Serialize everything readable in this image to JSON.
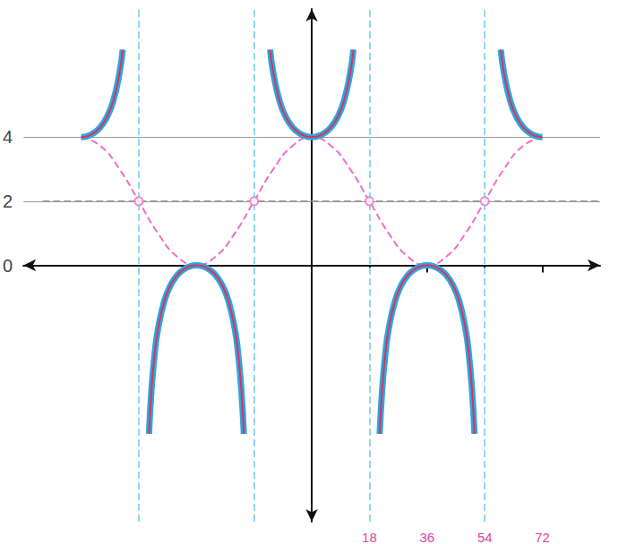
{
  "chart_data": {
    "type": "line",
    "xlim": [
      -90,
      90
    ],
    "ylim": [
      -8,
      8
    ],
    "xticks": [
      18,
      36,
      54,
      72
    ],
    "yticks": [
      0,
      2,
      4
    ],
    "grid": true,
    "series": [
      {
        "type": "line",
        "color": "#29a8e0",
        "line_style": "solid",
        "x": [
          -72,
          -70,
          -68,
          -66,
          -64,
          -62,
          -60,
          -59
        ],
        "values": [
          4,
          4.03,
          4.13,
          4.31,
          4.61,
          5.11,
          6,
          6.73
        ]
      },
      {
        "type": "line",
        "color": "#29a8e0",
        "line_style": "solid",
        "x": [
          -50.8,
          -50,
          -49,
          -48,
          -46,
          -44,
          -42,
          -40,
          -38,
          -36,
          -34,
          -32,
          -30,
          -28,
          -26,
          -24,
          -23,
          -22,
          -21.2
        ],
        "values": [
          -5.26,
          -3.85,
          -2.73,
          -2,
          -1.11,
          -0.61,
          -0.31,
          -0.13,
          -0.03,
          0,
          -0.03,
          -0.13,
          -0.31,
          -0.61,
          -1.11,
          -2,
          -2.73,
          -3.85,
          -5.26
        ]
      },
      {
        "type": "line",
        "color": "#29a8e0",
        "line_style": "solid",
        "x": [
          -13,
          -12,
          -10,
          -8,
          -6,
          -4,
          -2,
          0,
          2,
          4,
          6,
          8,
          10,
          12,
          13
        ],
        "values": [
          6.73,
          6,
          5.11,
          4.61,
          4.31,
          4.13,
          4.03,
          4,
          4.03,
          4.13,
          4.31,
          4.61,
          5.11,
          6,
          6.73
        ]
      },
      {
        "type": "line",
        "color": "#29a8e0",
        "line_style": "solid",
        "x": [
          21.2,
          22,
          23,
          24,
          26,
          28,
          30,
          32,
          34,
          36,
          38,
          40,
          42,
          44,
          46,
          48,
          49,
          50,
          50.8
        ],
        "values": [
          -5.26,
          -3.85,
          -2.73,
          -2,
          -1.11,
          -0.61,
          -0.31,
          -0.13,
          -0.03,
          0,
          -0.03,
          -0.13,
          -0.31,
          -0.61,
          -1.11,
          -2,
          -2.73,
          -3.85,
          -5.26
        ]
      },
      {
        "type": "line",
        "color": "#29a8e0",
        "line_style": "solid",
        "x": [
          59,
          60,
          62,
          64,
          66,
          68,
          70,
          72
        ],
        "values": [
          6.73,
          6,
          5.11,
          4.61,
          4.31,
          4.13,
          4.03,
          4
        ]
      },
      {
        "type": "line",
        "color": "#f06fc4",
        "line_style": "dashed",
        "x": [
          -72,
          -66,
          -60,
          -54,
          -48,
          -42,
          -36,
          -30,
          -24,
          -18,
          -12,
          -6,
          0,
          6,
          12,
          18,
          24,
          30,
          36,
          42,
          48,
          54,
          60,
          66,
          72
        ],
        "values": [
          4,
          3.73,
          3,
          2,
          1,
          0.27,
          0,
          0.27,
          1,
          2,
          3,
          3.73,
          4,
          3.73,
          3,
          2,
          1,
          0.27,
          0,
          0.27,
          1,
          2,
          3,
          3.73,
          4
        ]
      },
      {
        "type": "line",
        "color": "#999999",
        "line_style": "dashed",
        "x": [
          -84,
          90
        ],
        "values": [
          2,
          2
        ]
      },
      {
        "type": "vline",
        "color": "#8fd8f0",
        "line_style": "dashed",
        "x": [
          -54,
          -18,
          18,
          54
        ]
      },
      {
        "type": "scatter",
        "color": "#f06fc4",
        "marker": "circle",
        "x": [
          -54,
          -18,
          18,
          54
        ],
        "values": [
          2,
          2,
          2,
          2
        ]
      }
    ]
  }
}
